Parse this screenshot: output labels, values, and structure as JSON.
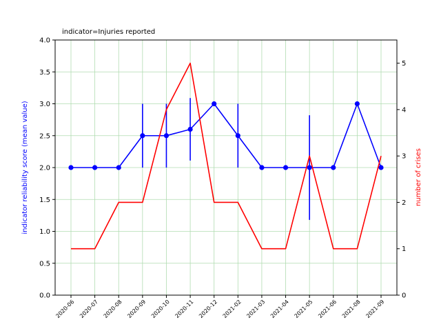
{
  "chart_data": {
    "type": "line",
    "title": "indicator=Injuries reported",
    "categories": [
      "2020-06",
      "2020-07",
      "2020-08",
      "2020-09",
      "2020-10",
      "2020-11",
      "2020-12",
      "2021-02",
      "2021-03",
      "2021-04",
      "2021-05",
      "2021-06",
      "2021-08",
      "2021-09"
    ],
    "ylabel_left": "indicator reliability score (mean value)",
    "ylabel_right": "number of crises",
    "ylim_left": [
      0,
      4
    ],
    "yticks_left": [
      "0.0",
      "0.5",
      "1.0",
      "1.5",
      "2.0",
      "2.5",
      "3.0",
      "3.5",
      "4.0"
    ],
    "ylim_right": [
      0,
      5.5
    ],
    "yticks_right": [
      "0",
      "1",
      "2",
      "3",
      "4",
      "5"
    ],
    "grid": true,
    "series": [
      {
        "axis": "left",
        "color": "#0000ff",
        "marker": "circle",
        "values": [
          2.0,
          2.0,
          2.0,
          2.5,
          2.5,
          2.6,
          3.0,
          2.5,
          2.0,
          2.0,
          2.0,
          2.0,
          3.0,
          2.0
        ],
        "error": [
          0,
          0,
          0,
          0.5,
          0.5,
          0.49,
          0,
          0.5,
          0,
          0,
          0.82,
          0,
          0,
          0
        ]
      },
      {
        "axis": "right",
        "color": "#ff0000",
        "marker": "none",
        "values": [
          1,
          1,
          2,
          2,
          4,
          5,
          2,
          2,
          1,
          1,
          3,
          1,
          1,
          3
        ]
      }
    ]
  }
}
